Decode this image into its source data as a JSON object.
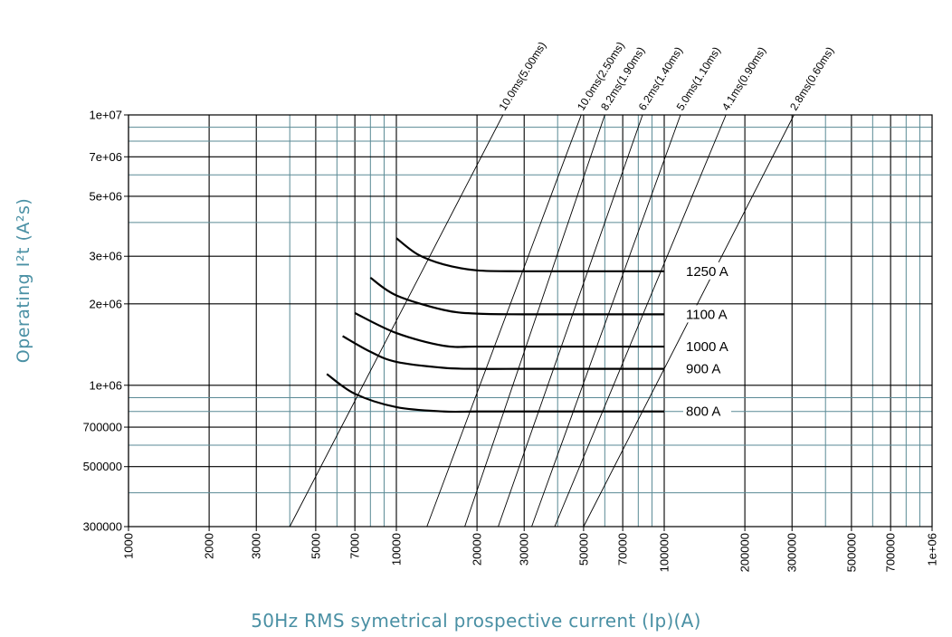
{
  "chart_data": {
    "type": "line",
    "xlabel": "50Hz RMS symetrical prospective current (Ip)(A)",
    "ylabel": "Operating I²t (A²s)",
    "xscale": "log",
    "yscale": "log",
    "xlim": [
      1000,
      1000000
    ],
    "ylim": [
      300000,
      10000000
    ],
    "grid": true,
    "x_tick_labels": [
      {
        "value": 1000,
        "label": "1000"
      },
      {
        "value": 2000,
        "label": "2000"
      },
      {
        "value": 3000,
        "label": "3000"
      },
      {
        "value": 5000,
        "label": "5000"
      },
      {
        "value": 7000,
        "label": "7000"
      },
      {
        "value": 10000,
        "label": "10000"
      },
      {
        "value": 20000,
        "label": "20000"
      },
      {
        "value": 30000,
        "label": "30000"
      },
      {
        "value": 50000,
        "label": "50000"
      },
      {
        "value": 70000,
        "label": "70000"
      },
      {
        "value": 100000,
        "label": "100000"
      },
      {
        "value": 200000,
        "label": "200000"
      },
      {
        "value": 300000,
        "label": "300000"
      },
      {
        "value": 500000,
        "label": "500000"
      },
      {
        "value": 700000,
        "label": "700000"
      },
      {
        "value": 1000000,
        "label": "1e+06"
      }
    ],
    "y_tick_labels": [
      {
        "value": 300000,
        "label": "300000"
      },
      {
        "value": 500000,
        "label": "500000"
      },
      {
        "value": 700000,
        "label": "700000"
      },
      {
        "value": 1000000,
        "label": "1e+06"
      },
      {
        "value": 2000000,
        "label": "2e+06"
      },
      {
        "value": 3000000,
        "label": "3e+06"
      },
      {
        "value": 5000000,
        "label": "5e+06"
      },
      {
        "value": 7000000,
        "label": "7e+06"
      },
      {
        "value": 10000000,
        "label": "1e+07"
      }
    ],
    "series": [
      {
        "name": "1250 A",
        "x": [
          10000,
          12000,
          15000,
          20000,
          30000,
          50000,
          100000
        ],
        "y": [
          3500000,
          3050000,
          2800000,
          2660000,
          2640000,
          2640000,
          2640000
        ]
      },
      {
        "name": "1100 A",
        "x": [
          8000,
          10000,
          15000,
          20000,
          30000,
          50000,
          100000
        ],
        "y": [
          2500000,
          2150000,
          1900000,
          1840000,
          1830000,
          1830000,
          1830000
        ]
      },
      {
        "name": "1000 A",
        "x": [
          7000,
          10000,
          15000,
          20000,
          30000,
          50000,
          100000
        ],
        "y": [
          1850000,
          1560000,
          1400000,
          1390000,
          1390000,
          1390000,
          1390000
        ]
      },
      {
        "name": "900 A",
        "x": [
          6300,
          8000,
          10000,
          15000,
          20000,
          30000,
          50000,
          100000
        ],
        "y": [
          1520000,
          1330000,
          1220000,
          1160000,
          1150000,
          1150000,
          1150000,
          1150000
        ]
      },
      {
        "name": "800 A",
        "x": [
          5500,
          7000,
          10000,
          15000,
          20000,
          30000,
          50000,
          100000
        ],
        "y": [
          1100000,
          930000,
          830000,
          800000,
          800000,
          800000,
          800000,
          800000
        ]
      }
    ],
    "reference_lines": [
      {
        "label": "10.0ms(5.00ms)",
        "x": [
          4000,
          25000
        ],
        "y": [
          300000,
          10000000
        ]
      },
      {
        "label": "10.0ms(2.50ms)",
        "x": [
          13000,
          49000
        ],
        "y": [
          300000,
          10000000
        ]
      },
      {
        "label": "8.2ms(1.90ms)",
        "x": [
          18000,
          60000
        ],
        "y": [
          300000,
          10000000
        ]
      },
      {
        "label": "6.2ms(1.40ms)",
        "x": [
          24000,
          83000
        ],
        "y": [
          300000,
          10000000
        ]
      },
      {
        "label": "5.0ms(1.10ms)",
        "x": [
          32000,
          115000
        ],
        "y": [
          300000,
          10000000
        ]
      },
      {
        "label": "4.1ms(0.90ms)",
        "x": [
          39000,
          170000
        ],
        "y": [
          300000,
          10000000
        ]
      },
      {
        "label": "2.8ms(0.60ms)",
        "x": [
          50000,
          305000
        ],
        "y": [
          300000,
          10000000
        ]
      }
    ]
  }
}
